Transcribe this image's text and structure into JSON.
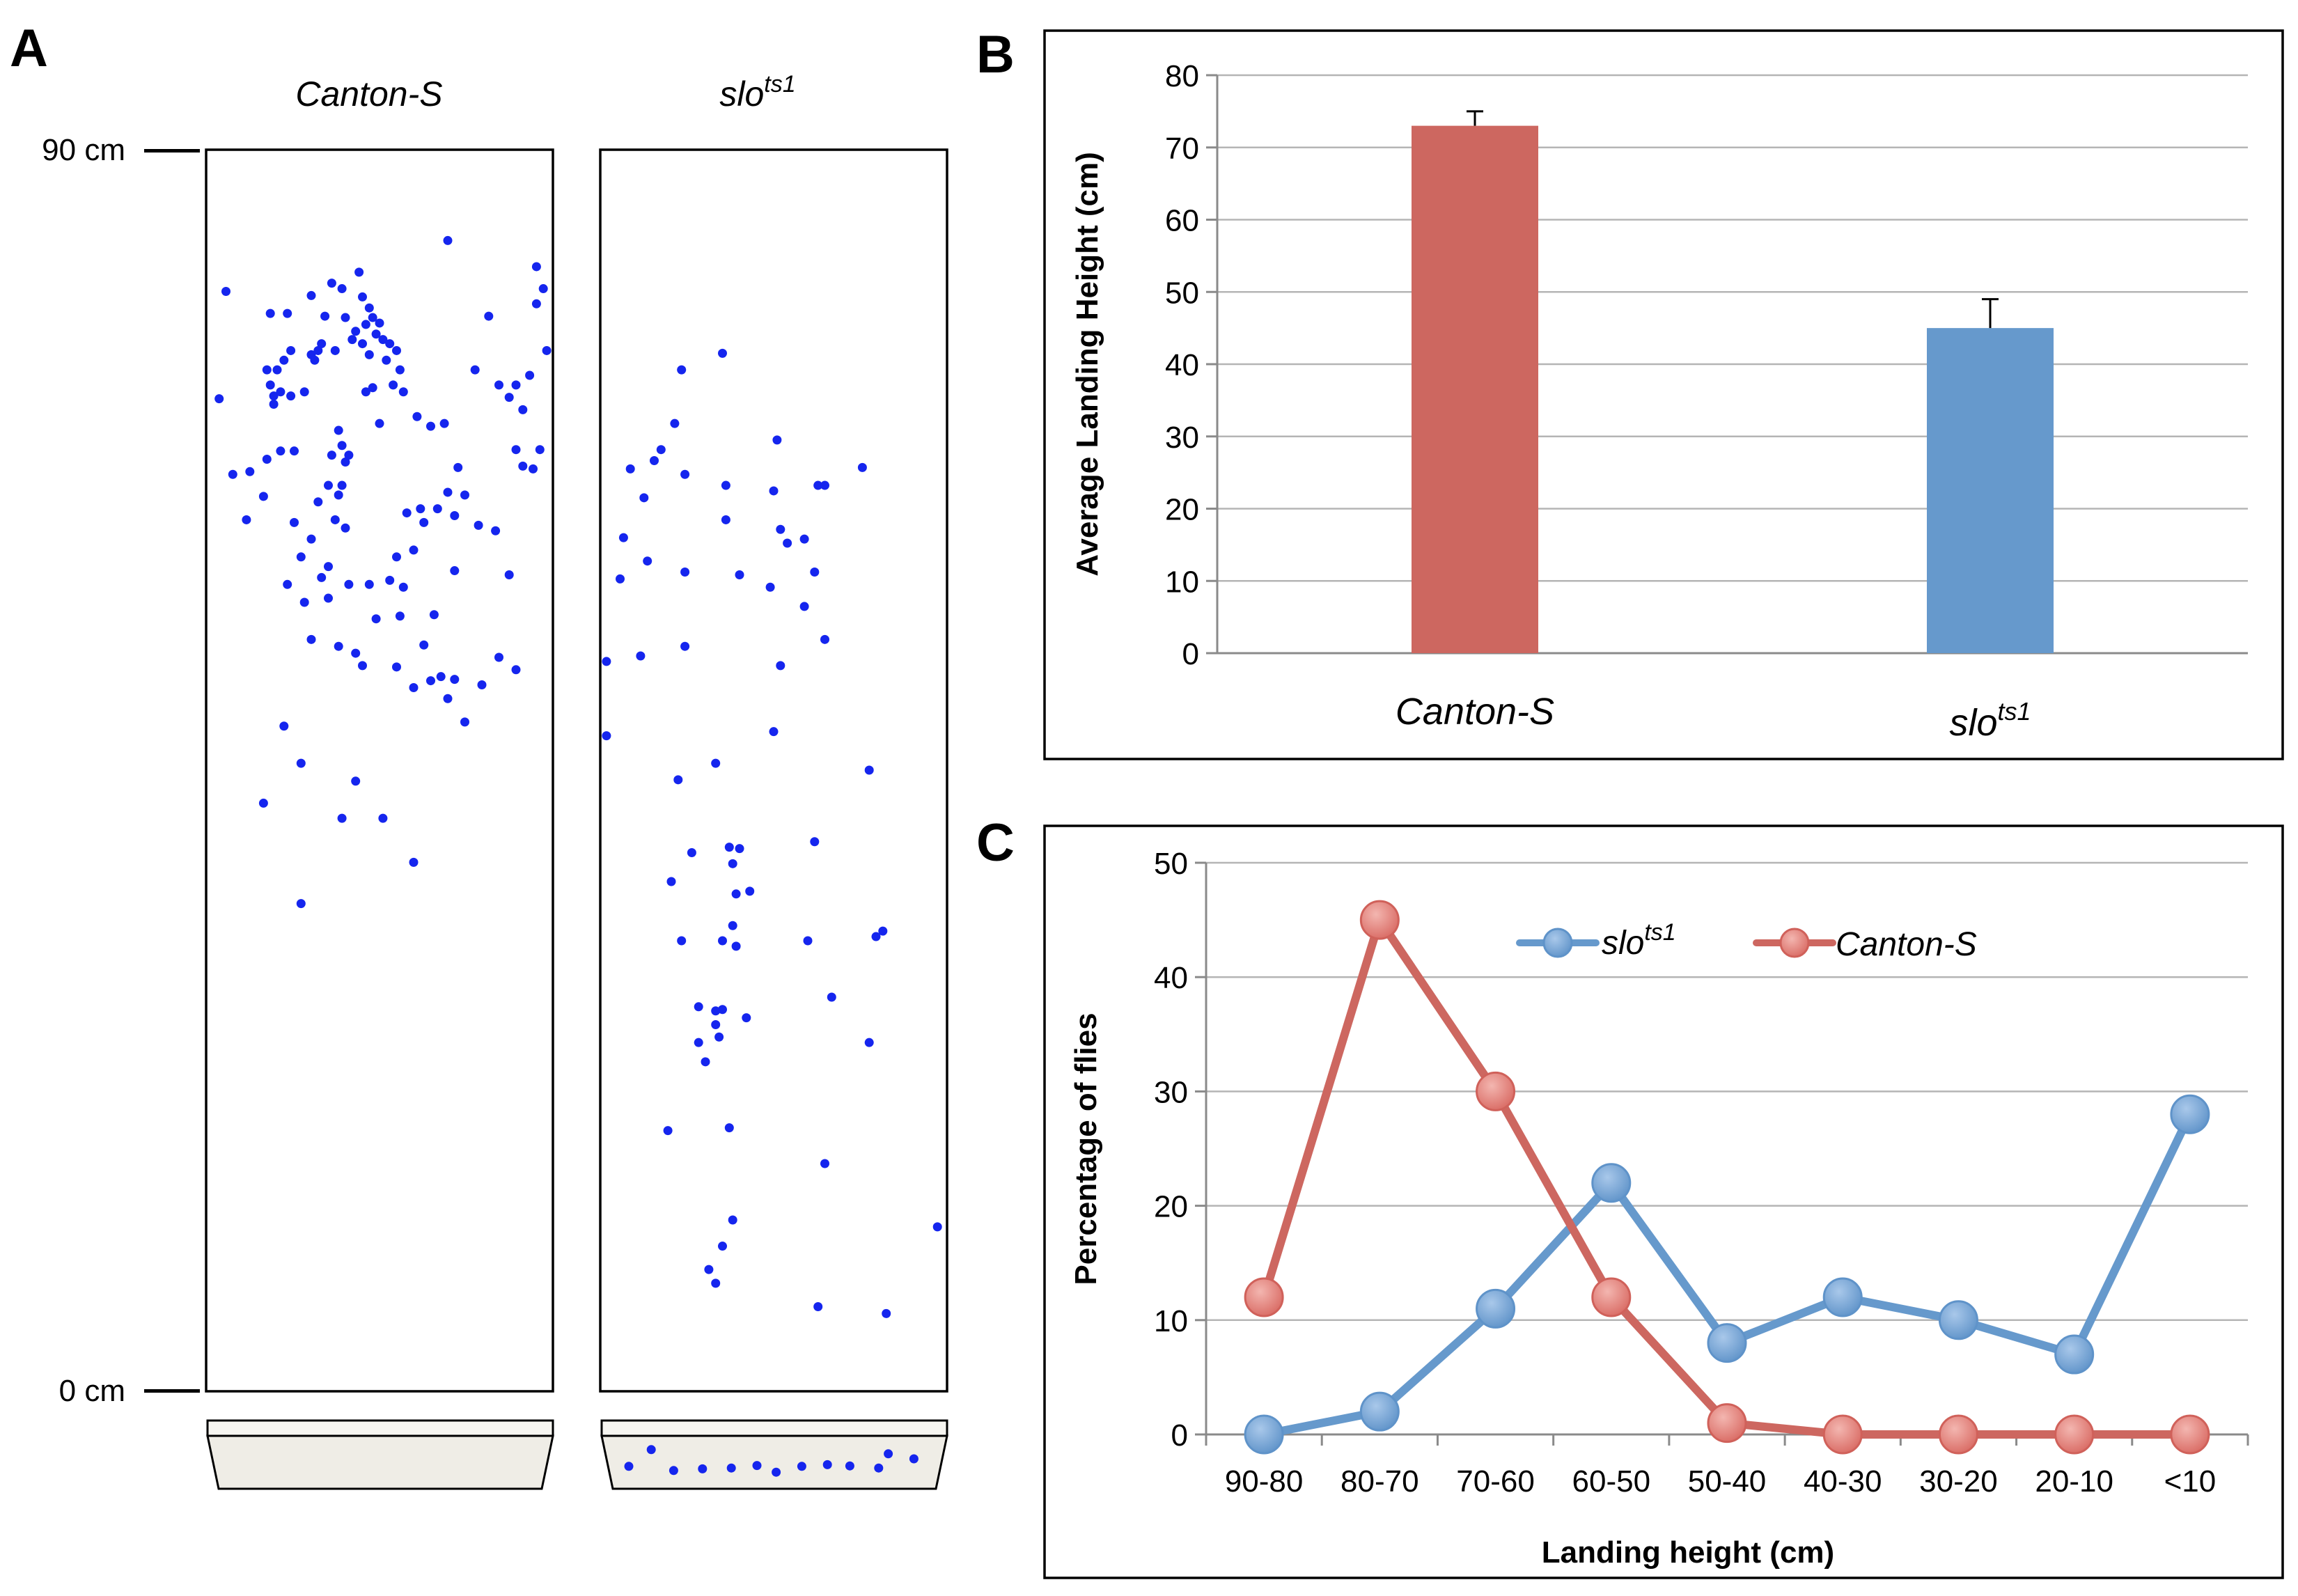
{
  "panel_labels": {
    "a": "A",
    "b": "B",
    "c": "C"
  },
  "colors": {
    "canton": "#cd6760",
    "slo": "#6699cc",
    "fly_dot": "#1525ee",
    "grid": "#b5b5b5",
    "food": "#efede6"
  },
  "panel_a": {
    "left_column": {
      "name": "Canton-S"
    },
    "right_column": {
      "name_base": "slo",
      "name_sup": "ts1"
    },
    "scale_top": "90 cm",
    "scale_bottom": "0 cm",
    "canton_flies_cm": [
      [
        0.05,
        79.8
      ],
      [
        0.03,
        72.0
      ],
      [
        0.07,
        66.5
      ],
      [
        0.11,
        63.2
      ],
      [
        0.12,
        66.7
      ],
      [
        0.17,
        67.6
      ],
      [
        0.16,
        64.9
      ],
      [
        0.21,
        68.2
      ],
      [
        0.19,
        71.6
      ],
      [
        0.18,
        73.0
      ],
      [
        0.17,
        74.1
      ],
      [
        0.2,
        74.1
      ],
      [
        0.22,
        74.8
      ],
      [
        0.24,
        75.5
      ],
      [
        0.18,
        78.2
      ],
      [
        0.23,
        78.2
      ],
      [
        0.19,
        72.2
      ],
      [
        0.21,
        72.5
      ],
      [
        0.24,
        72.2
      ],
      [
        0.28,
        72.5
      ],
      [
        0.25,
        68.2
      ],
      [
        0.3,
        75.2
      ],
      [
        0.31,
        74.8
      ],
      [
        0.32,
        75.5
      ],
      [
        0.33,
        76.0
      ],
      [
        0.37,
        75.5
      ],
      [
        0.38,
        69.7
      ],
      [
        0.4,
        67.4
      ],
      [
        0.39,
        65.7
      ],
      [
        0.35,
        65.7
      ],
      [
        0.38,
        65.0
      ],
      [
        0.41,
        67.9
      ],
      [
        0.36,
        67.9
      ],
      [
        0.39,
        68.6
      ],
      [
        0.32,
        64.5
      ],
      [
        0.37,
        63.2
      ],
      [
        0.4,
        62.6
      ],
      [
        0.43,
        76.9
      ],
      [
        0.46,
        77.4
      ],
      [
        0.47,
        78.6
      ],
      [
        0.45,
        79.4
      ],
      [
        0.44,
        81.2
      ],
      [
        0.39,
        80.0
      ],
      [
        0.36,
        80.4
      ],
      [
        0.4,
        77.9
      ],
      [
        0.42,
        76.3
      ],
      [
        0.45,
        76.0
      ],
      [
        0.47,
        75.2
      ],
      [
        0.49,
        76.7
      ],
      [
        0.5,
        77.5
      ],
      [
        0.48,
        77.9
      ],
      [
        0.51,
        76.3
      ],
      [
        0.53,
        76.0
      ],
      [
        0.52,
        74.8
      ],
      [
        0.55,
        75.5
      ],
      [
        0.56,
        74.1
      ],
      [
        0.5,
        70.2
      ],
      [
        0.48,
        72.8
      ],
      [
        0.54,
        73.0
      ],
      [
        0.57,
        72.5
      ],
      [
        0.61,
        70.7
      ],
      [
        0.65,
        70.0
      ],
      [
        0.69,
        70.2
      ],
      [
        0.73,
        67.0
      ],
      [
        0.7,
        65.2
      ],
      [
        0.67,
        64.0
      ],
      [
        0.63,
        63.0
      ],
      [
        0.62,
        64.0
      ],
      [
        0.58,
        63.7
      ],
      [
        0.6,
        61.0
      ],
      [
        0.55,
        60.5
      ],
      [
        0.57,
        58.3
      ],
      [
        0.53,
        58.8
      ],
      [
        0.47,
        58.5
      ],
      [
        0.49,
        56.0
      ],
      [
        0.43,
        53.5
      ],
      [
        0.38,
        54.0
      ],
      [
        0.3,
        54.5
      ],
      [
        0.35,
        57.5
      ],
      [
        0.27,
        60.5
      ],
      [
        0.25,
        63.0
      ],
      [
        0.3,
        79.5
      ],
      [
        0.34,
        78.0
      ],
      [
        0.46,
        72.5
      ],
      [
        0.56,
        56.2
      ],
      [
        0.6,
        51.0
      ],
      [
        0.65,
        51.5
      ],
      [
        0.68,
        51.8
      ],
      [
        0.72,
        51.6
      ],
      [
        0.7,
        50.2
      ],
      [
        0.75,
        48.5
      ],
      [
        0.8,
        51.2
      ],
      [
        0.85,
        53.2
      ],
      [
        0.88,
        59.2
      ],
      [
        0.9,
        68.3
      ],
      [
        0.92,
        67.1
      ],
      [
        0.95,
        66.9
      ],
      [
        0.97,
        68.3
      ],
      [
        0.94,
        73.7
      ],
      [
        0.96,
        78.9
      ],
      [
        0.98,
        80.0
      ],
      [
        0.96,
        81.6
      ],
      [
        0.99,
        75.5
      ],
      [
        0.72,
        63.5
      ],
      [
        0.75,
        65.0
      ],
      [
        0.78,
        74.1
      ],
      [
        0.82,
        78.0
      ],
      [
        0.85,
        73.0
      ],
      [
        0.88,
        72.1
      ],
      [
        0.92,
        71.2
      ],
      [
        0.9,
        73.0
      ],
      [
        0.22,
        48.2
      ],
      [
        0.27,
        45.5
      ],
      [
        0.23,
        58.5
      ],
      [
        0.28,
        57.2
      ],
      [
        0.41,
        58.5
      ],
      [
        0.33,
        59.0
      ],
      [
        0.3,
        61.8
      ],
      [
        0.35,
        59.8
      ],
      [
        0.7,
        83.5
      ],
      [
        0.55,
        52.5
      ],
      [
        0.45,
        52.6
      ],
      [
        0.66,
        56.3
      ],
      [
        0.63,
        54.1
      ],
      [
        0.72,
        59.5
      ],
      [
        0.79,
        62.8
      ],
      [
        0.84,
        62.4
      ],
      [
        0.9,
        52.3
      ],
      [
        0.39,
        41.5
      ],
      [
        0.51,
        41.5
      ],
      [
        0.6,
        38.3
      ],
      [
        0.16,
        42.6
      ],
      [
        0.27,
        35.3
      ],
      [
        0.43,
        44.2
      ]
    ],
    "slo_flies_cm": [
      [
        0.23,
        74.1
      ],
      [
        0.35,
        75.3
      ],
      [
        0.21,
        70.2
      ],
      [
        0.17,
        68.3
      ],
      [
        0.15,
        67.5
      ],
      [
        0.24,
        66.5
      ],
      [
        0.08,
        66.9
      ],
      [
        0.12,
        64.8
      ],
      [
        0.36,
        65.7
      ],
      [
        0.5,
        65.3
      ],
      [
        0.51,
        69.0
      ],
      [
        0.63,
        65.7
      ],
      [
        0.76,
        67.0
      ],
      [
        0.52,
        62.5
      ],
      [
        0.36,
        63.2
      ],
      [
        0.06,
        61.9
      ],
      [
        0.54,
        61.5
      ],
      [
        0.13,
        60.2
      ],
      [
        0.05,
        58.9
      ],
      [
        0.24,
        59.4
      ],
      [
        0.4,
        59.2
      ],
      [
        0.49,
        58.3
      ],
      [
        0.59,
        56.9
      ],
      [
        0.62,
        59.4
      ],
      [
        0.65,
        54.5
      ],
      [
        0.78,
        45.0
      ],
      [
        0.52,
        52.6
      ],
      [
        0.5,
        47.8
      ],
      [
        0.59,
        61.8
      ],
      [
        0.65,
        65.7
      ],
      [
        0.01,
        52.9
      ],
      [
        0.11,
        53.3
      ],
      [
        0.24,
        54.0
      ],
      [
        0.01,
        47.5
      ],
      [
        0.33,
        45.5
      ],
      [
        0.22,
        44.3
      ],
      [
        0.62,
        39.8
      ],
      [
        0.26,
        39.0
      ],
      [
        0.38,
        38.2
      ],
      [
        0.37,
        39.4
      ],
      [
        0.4,
        39.3
      ],
      [
        0.43,
        36.2
      ],
      [
        0.2,
        36.9
      ],
      [
        0.23,
        32.6
      ],
      [
        0.38,
        33.7
      ],
      [
        0.35,
        32.6
      ],
      [
        0.39,
        32.2
      ],
      [
        0.6,
        32.6
      ],
      [
        0.8,
        32.9
      ],
      [
        0.82,
        33.3
      ],
      [
        0.67,
        28.5
      ],
      [
        0.78,
        25.2
      ],
      [
        0.35,
        27.6
      ],
      [
        0.28,
        27.8
      ],
      [
        0.33,
        27.5
      ],
      [
        0.28,
        25.2
      ],
      [
        0.3,
        23.8
      ],
      [
        0.42,
        27.0
      ],
      [
        0.33,
        26.5
      ],
      [
        0.34,
        25.6
      ],
      [
        0.19,
        18.8
      ],
      [
        0.38,
        12.3
      ],
      [
        0.31,
        8.7
      ],
      [
        0.33,
        7.7
      ],
      [
        0.35,
        10.4
      ],
      [
        0.65,
        16.4
      ],
      [
        0.63,
        6.0
      ],
      [
        0.83,
        5.5
      ],
      [
        0.98,
        11.8
      ],
      [
        0.37,
        19.0
      ],
      [
        0.39,
        36.0
      ]
    ],
    "slo_food_flies": [
      [
        0.12,
        0.28
      ],
      [
        0.19,
        0.78
      ],
      [
        0.28,
        0.74
      ],
      [
        0.37,
        0.72
      ],
      [
        0.45,
        0.66
      ],
      [
        0.51,
        0.82
      ],
      [
        0.59,
        0.68
      ],
      [
        0.67,
        0.64
      ],
      [
        0.74,
        0.67
      ],
      [
        0.83,
        0.72
      ],
      [
        0.86,
        0.38
      ],
      [
        0.94,
        0.5
      ],
      [
        0.05,
        0.68
      ]
    ]
  },
  "chart_data": [
    {
      "type": "bar",
      "panel": "B",
      "categories": [
        "Canton-S",
        "slo"
      ],
      "category_superscripts": [
        "",
        "ts1"
      ],
      "values": [
        73,
        45
      ],
      "error_bars": [
        2,
        4
      ],
      "ylabel": "Average Landing Height (cm)",
      "xlabel": "",
      "ylim": [
        0,
        80
      ],
      "yticks": [
        "0",
        "10",
        "20",
        "30",
        "40",
        "50",
        "60",
        "70",
        "80"
      ],
      "grid": true
    },
    {
      "type": "line",
      "panel": "C",
      "categories": [
        "90-80",
        "80-70",
        "70-60",
        "60-50",
        "50-40",
        "40-30",
        "30-20",
        "20-10",
        "<10"
      ],
      "series": [
        {
          "name": "slo",
          "name_sup": "ts1",
          "values": [
            0,
            2,
            11,
            22,
            8,
            12,
            10,
            7,
            28
          ]
        },
        {
          "name": "Canton-S",
          "values": [
            12,
            45,
            30,
            12,
            1,
            0,
            0,
            0,
            0
          ]
        }
      ],
      "xlabel": "Landing height (cm)",
      "ylabel": "Percentage of flies",
      "ylim": [
        0,
        50
      ],
      "yticks": [
        "0",
        "10",
        "20",
        "30",
        "40",
        "50"
      ],
      "legend_position": "top-center",
      "grid": true
    }
  ]
}
